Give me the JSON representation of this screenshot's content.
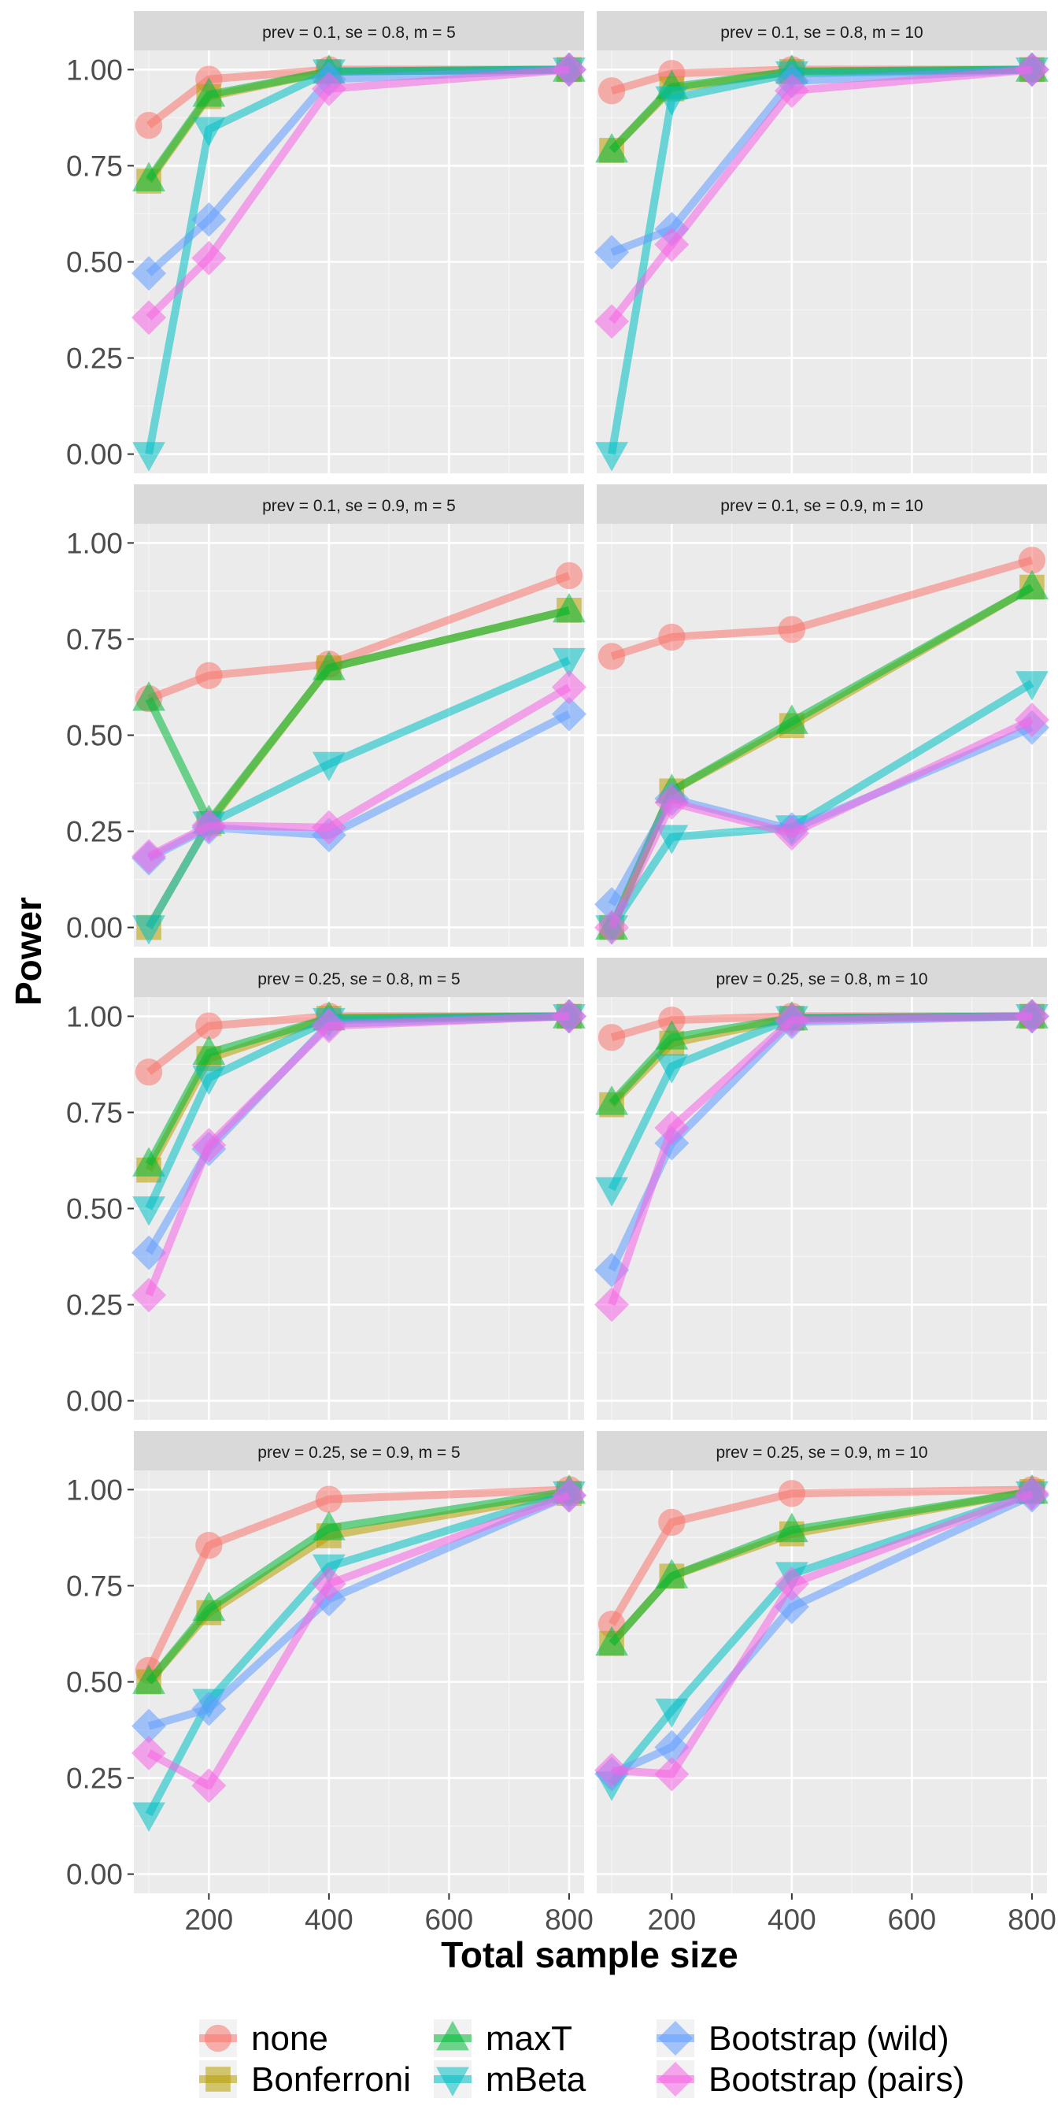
{
  "chart_data": {
    "type": "line",
    "xlabel": "Total sample size",
    "ylabel": "Power",
    "x": [
      100,
      200,
      400,
      800
    ],
    "xlim": [
      75,
      825
    ],
    "ylim": [
      -0.05,
      1.05
    ],
    "x_ticks": [
      200,
      400,
      600,
      800
    ],
    "y_ticks": [
      0,
      0.25,
      0.5,
      0.75,
      1.0
    ],
    "y_tick_labels": [
      "0.00",
      "0.25",
      "0.50",
      "0.75",
      "1.00"
    ],
    "grid": true,
    "legend_position": "bottom",
    "legend": [
      {
        "key": "none",
        "label": "none",
        "color": "#F8766D",
        "shape": "circle"
      },
      {
        "key": "bonferroni",
        "label": "Bonferroni",
        "color": "#B79F00",
        "shape": "square"
      },
      {
        "key": "maxt",
        "label": "maxT",
        "color": "#00BA38",
        "shape": "triangle-up"
      },
      {
        "key": "mbeta",
        "label": "mBeta",
        "color": "#00BFC4",
        "shape": "triangle-down"
      },
      {
        "key": "boot_wild",
        "label": "Bootstrap (wild)",
        "color": "#619CFF",
        "shape": "diamond"
      },
      {
        "key": "boot_pairs",
        "label": "Bootstrap (pairs)",
        "color": "#F564E3",
        "shape": "diamond"
      }
    ],
    "panels": [
      {
        "strip": "prev =  0.1, se =  0.8, m =  5",
        "series": {
          "none": [
            0.855,
            0.975,
            1.0,
            1.0
          ],
          "bonferroni": [
            0.71,
            0.93,
            0.995,
            1.0
          ],
          "maxt": [
            0.715,
            0.935,
            0.995,
            1.0
          ],
          "mbeta": [
            0.0,
            0.845,
            0.995,
            1.0
          ],
          "boot_wild": [
            0.47,
            0.61,
            0.975,
            1.0
          ],
          "boot_pairs": [
            0.355,
            0.51,
            0.95,
            1.0
          ]
        }
      },
      {
        "strip": "prev =  0.1, se =  0.8, m =  10",
        "series": {
          "none": [
            0.945,
            0.99,
            1.0,
            1.0
          ],
          "bonferroni": [
            0.79,
            0.95,
            0.995,
            1.0
          ],
          "maxt": [
            0.79,
            0.955,
            0.995,
            1.0
          ],
          "mbeta": [
            0.0,
            0.925,
            0.99,
            1.0
          ],
          "boot_wild": [
            0.525,
            0.585,
            0.97,
            1.0
          ],
          "boot_pairs": [
            0.345,
            0.545,
            0.945,
            1.0
          ]
        }
      },
      {
        "strip": "prev =  0.1, se =  0.9, m =  5",
        "series": {
          "none": [
            0.595,
            0.655,
            0.685,
            0.915
          ],
          "bonferroni": [
            0.0,
            0.27,
            0.675,
            0.825
          ],
          "maxt": [
            0.595,
            0.275,
            0.675,
            0.825
          ],
          "mbeta": [
            0.0,
            0.27,
            0.425,
            0.695
          ],
          "boot_wild": [
            0.18,
            0.26,
            0.24,
            0.555
          ],
          "boot_pairs": [
            0.185,
            0.265,
            0.26,
            0.625
          ]
        }
      },
      {
        "strip": "prev =  0.1, se =  0.9, m =  10",
        "series": {
          "none": [
            0.705,
            0.755,
            0.775,
            0.955
          ],
          "bonferroni": [
            0.0,
            0.355,
            0.525,
            0.885
          ],
          "maxt": [
            0.0,
            0.355,
            0.535,
            0.885
          ],
          "mbeta": [
            0.0,
            0.235,
            0.26,
            0.635
          ],
          "boot_wild": [
            0.06,
            0.335,
            0.255,
            0.52
          ],
          "boot_pairs": [
            0.0,
            0.325,
            0.245,
            0.54
          ]
        }
      },
      {
        "strip": "prev =  0.25, se =  0.8, m =  5",
        "series": {
          "none": [
            0.855,
            0.975,
            1.0,
            1.0
          ],
          "bonferroni": [
            0.6,
            0.89,
            0.995,
            1.0
          ],
          "maxt": [
            0.615,
            0.905,
            0.995,
            1.0
          ],
          "mbeta": [
            0.5,
            0.84,
            0.99,
            1.0
          ],
          "boot_wild": [
            0.385,
            0.655,
            0.98,
            1.0
          ],
          "boot_pairs": [
            0.275,
            0.665,
            0.975,
            1.0
          ]
        }
      },
      {
        "strip": "prev =  0.25, se =  0.8, m =  10",
        "series": {
          "none": [
            0.945,
            0.99,
            1.0,
            1.0
          ],
          "bonferroni": [
            0.77,
            0.93,
            0.995,
            1.0
          ],
          "maxt": [
            0.775,
            0.945,
            0.995,
            1.0
          ],
          "mbeta": [
            0.55,
            0.87,
            0.995,
            1.0
          ],
          "boot_wild": [
            0.34,
            0.67,
            0.985,
            1.0
          ],
          "boot_pairs": [
            0.25,
            0.71,
            0.99,
            1.0
          ]
        }
      },
      {
        "strip": "prev =  0.25, se =  0.9, m =  5",
        "series": {
          "none": [
            0.53,
            0.855,
            0.975,
            1.0
          ],
          "bonferroni": [
            0.5,
            0.68,
            0.88,
            0.99
          ],
          "maxt": [
            0.5,
            0.69,
            0.9,
            0.995
          ],
          "mbeta": [
            0.155,
            0.45,
            0.8,
            0.99
          ],
          "boot_wild": [
            0.385,
            0.43,
            0.715,
            0.985
          ],
          "boot_pairs": [
            0.315,
            0.23,
            0.755,
            0.985
          ]
        }
      },
      {
        "strip": "prev =  0.25, se =  0.9, m =  10",
        "series": {
          "none": [
            0.65,
            0.915,
            0.99,
            1.0
          ],
          "bonferroni": [
            0.6,
            0.775,
            0.885,
            0.995
          ],
          "maxt": [
            0.6,
            0.775,
            0.895,
            0.995
          ],
          "mbeta": [
            0.235,
            0.425,
            0.78,
            0.99
          ],
          "boot_wild": [
            0.26,
            0.33,
            0.695,
            0.985
          ],
          "boot_pairs": [
            0.27,
            0.26,
            0.755,
            0.99
          ]
        }
      }
    ]
  }
}
